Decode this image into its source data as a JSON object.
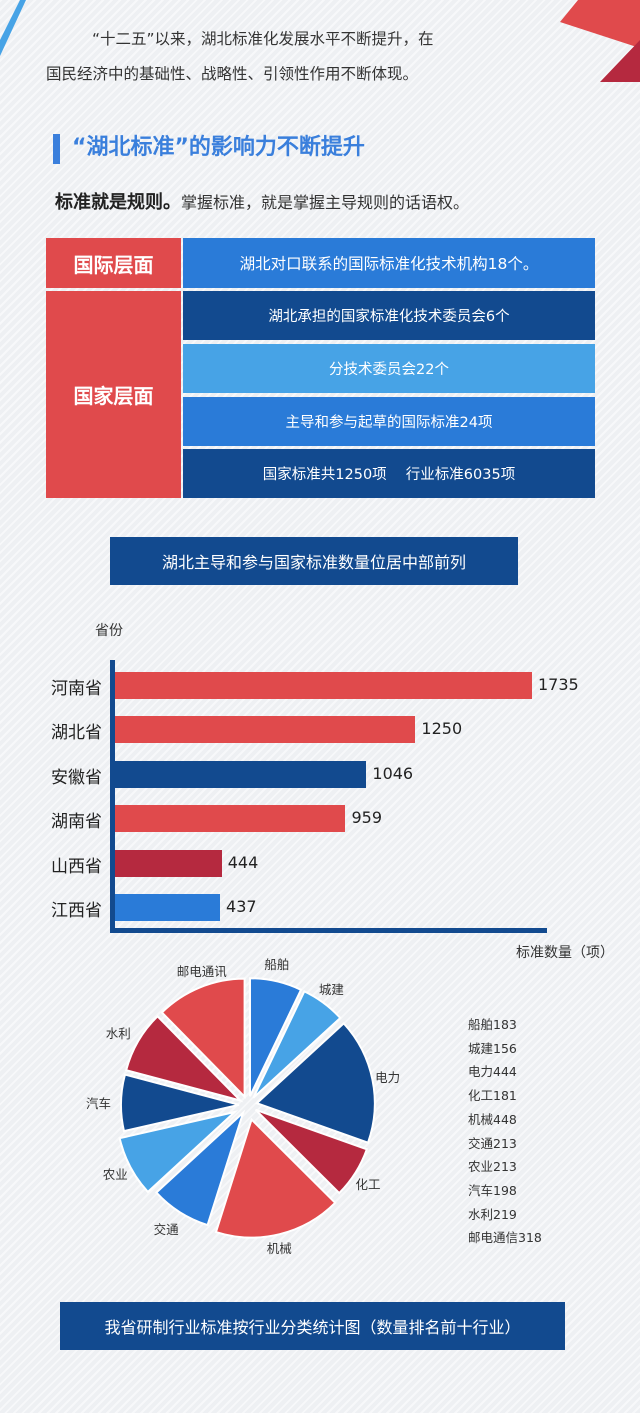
{
  "intro": {
    "line1": "“十二五”以来，湖北标准化发展水平不断提升，在",
    "line2": "国民经济中的基础性、战略性、引领性作用不断体现。"
  },
  "section": {
    "title": "“湖北标准”的影响力不断提升",
    "lead_bold": "标准就是规则。",
    "lead_rest": "掌握标准，就是掌握主导规则的话语权。"
  },
  "levels": {
    "international": {
      "label": "国际层面",
      "items": [
        "湖北对口联系的国际标准化技术机构18个。"
      ]
    },
    "national": {
      "label": "国家层面",
      "items": [
        "湖北承担的国家标准化技术委员会6个",
        "分技术委员会22个",
        "主导和参与起草的国际标准24项",
        "国家标准共1250项　 行业标准6035项"
      ]
    }
  },
  "colors": {
    "red": "#e04a4c",
    "dark_red": "#b5293f",
    "dark_blue": "#124a8f",
    "blue": "#2a7bd8",
    "light_blue": "#47a3e6"
  },
  "bar_banner": "湖北主导和参与国家标准数量位居中部前列",
  "pie_banner": "我省研制行业标准按行业分类统计图（数量排名前十行业）",
  "chart_data": [
    {
      "type": "bar",
      "orientation": "horizontal",
      "ylabel": "省份",
      "xlabel": "标准数量（项）",
      "categories": [
        "河南省",
        "湖北省",
        "安徽省",
        "湖南省",
        "山西省",
        "江西省"
      ],
      "values": [
        1735,
        1250,
        1046,
        959,
        444,
        437
      ],
      "bar_colors": [
        "#e04a4c",
        "#e04a4c",
        "#124a8f",
        "#e04a4c",
        "#b5293f",
        "#2a7bd8"
      ]
    },
    {
      "type": "pie",
      "labels": [
        "船舶",
        "城建",
        "电力",
        "化工",
        "机械",
        "交通",
        "农业",
        "汽车",
        "水利",
        "邮电通讯"
      ],
      "values": [
        183,
        156,
        444,
        181,
        448,
        213,
        213,
        198,
        219,
        318
      ],
      "legend": [
        "船舶183",
        "城建156",
        "电力444",
        "化工181",
        "机械448",
        "交通213",
        "农业213",
        "汽车198",
        "水利219",
        "邮电通信318"
      ],
      "slice_colors": [
        "#2a7bd8",
        "#47a3e6",
        "#124a8f",
        "#b5293f",
        "#e04a4c",
        "#2a7bd8",
        "#47a3e6",
        "#124a8f",
        "#b5293f",
        "#e04a4c"
      ]
    }
  ]
}
